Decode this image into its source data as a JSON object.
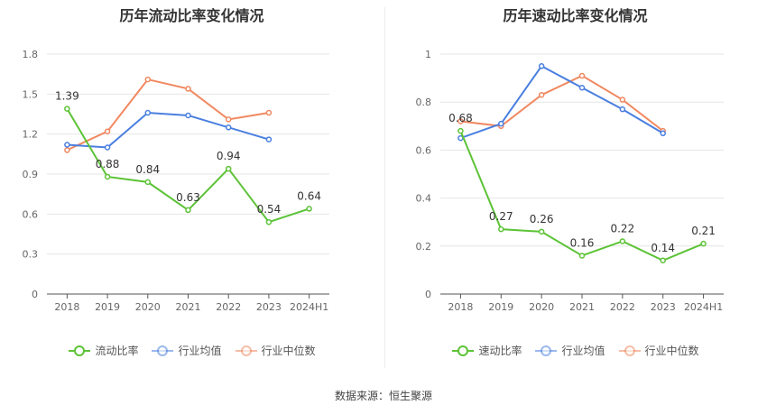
{
  "chart_data": [
    {
      "type": "line",
      "title": "历年流动比率变化情况",
      "categories": [
        "2018",
        "2019",
        "2020",
        "2021",
        "2022",
        "2023",
        "2024H1"
      ],
      "ylim": [
        0,
        1.8
      ],
      "yticks": [
        "0",
        "0.3",
        "0.6",
        "0.9",
        "1.2",
        "1.5",
        "1.8"
      ],
      "grid": true,
      "legend_position": "bottom",
      "series": [
        {
          "name": "流动比率",
          "color": "#5cc336",
          "values": [
            1.39,
            0.88,
            0.84,
            0.63,
            0.94,
            0.54,
            0.64
          ],
          "labels": [
            "1.39",
            "0.88",
            "0.84",
            "0.63",
            "0.94",
            "0.54",
            "0.64"
          ]
        },
        {
          "name": "行业均值",
          "color": "#4a7fe0",
          "values": [
            1.12,
            1.1,
            1.36,
            1.34,
            1.25,
            1.16,
            null
          ]
        },
        {
          "name": "行业中位数",
          "color": "#f08860",
          "values": [
            1.08,
            1.22,
            1.61,
            1.54,
            1.31,
            1.36,
            null
          ]
        }
      ]
    },
    {
      "type": "line",
      "title": "历年速动比率变化情况",
      "categories": [
        "2018",
        "2019",
        "2020",
        "2021",
        "2022",
        "2023",
        "2024H1"
      ],
      "ylim": [
        0,
        1
      ],
      "yticks": [
        "0",
        "0.2",
        "0.4",
        "0.6",
        "0.8",
        "1"
      ],
      "grid": true,
      "legend_position": "bottom",
      "series": [
        {
          "name": "速动比率",
          "color": "#5cc336",
          "values": [
            0.68,
            0.27,
            0.26,
            0.16,
            0.22,
            0.14,
            0.21
          ],
          "labels": [
            "0.68",
            "0.27",
            "0.26",
            "0.16",
            "0.22",
            "0.14",
            "0.21"
          ]
        },
        {
          "name": "行业均值",
          "color": "#4a7fe0",
          "values": [
            0.65,
            0.71,
            0.95,
            0.86,
            0.77,
            0.67,
            null
          ]
        },
        {
          "name": "行业中位数",
          "color": "#f08860",
          "values": [
            0.72,
            0.7,
            0.83,
            0.91,
            0.81,
            0.68,
            null
          ]
        }
      ]
    }
  ],
  "source": "数据来源：恒生聚源"
}
